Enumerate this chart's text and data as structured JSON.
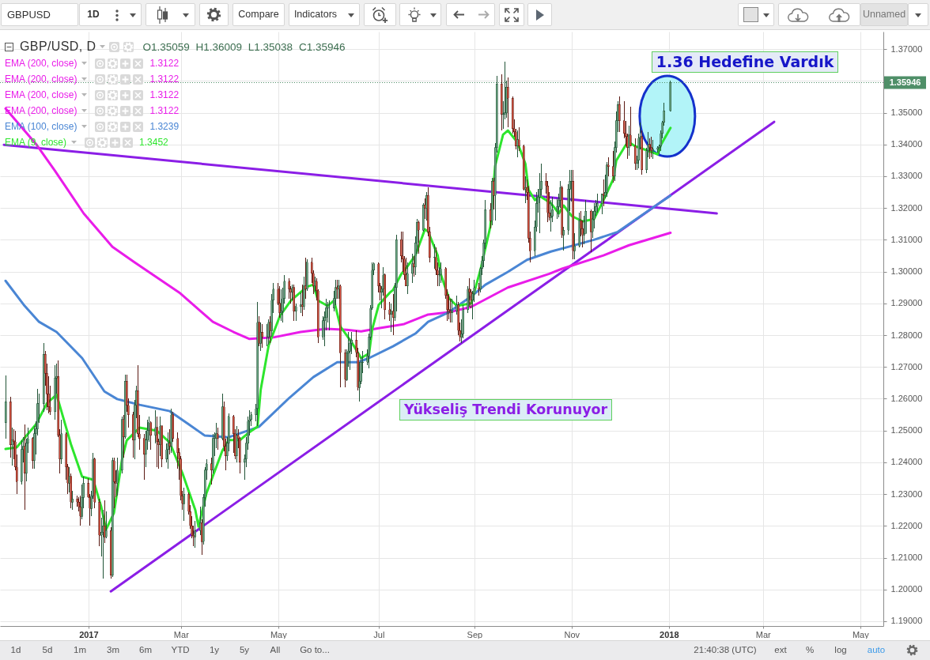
{
  "chart_data": {
    "type": "candlestick",
    "title": "GBP/USD, D",
    "subtitle": "O1.35059 H1.36009 L1.35038 C1.35946",
    "x": [
      "2016-11-11",
      "2016-11-14",
      "2016-11-15",
      "2016-11-16",
      "2016-11-17",
      "2016-11-18",
      "2016-11-21",
      "2016-11-22",
      "2016-11-23",
      "2016-11-24",
      "2016-11-25",
      "2016-11-28",
      "2016-11-29",
      "2016-11-30",
      "2016-12-01",
      "2016-12-02",
      "2016-12-05",
      "2016-12-06",
      "2016-12-07",
      "2016-12-08",
      "2016-12-09",
      "2016-12-12",
      "2016-12-13",
      "2016-12-14",
      "2016-12-15",
      "2016-12-16",
      "2016-12-19",
      "2016-12-20",
      "2016-12-21",
      "2016-12-22",
      "2016-12-23",
      "2016-12-26",
      "2016-12-27",
      "2016-12-28",
      "2016-12-29",
      "2016-12-30",
      "2017-01-02",
      "2017-01-03",
      "2017-01-04",
      "2017-01-05",
      "2017-01-06",
      "2017-01-09",
      "2017-01-10",
      "2017-01-11",
      "2017-01-12",
      "2017-01-13",
      "2017-01-16",
      "2017-01-17",
      "2017-01-18",
      "2017-01-19",
      "2017-01-20",
      "2017-01-23",
      "2017-01-24",
      "2017-01-25",
      "2017-01-26",
      "2017-01-27",
      "2017-01-30",
      "2017-01-31",
      "2017-02-01",
      "2017-02-02",
      "2017-02-03",
      "2017-02-06",
      "2017-02-07",
      "2017-02-08",
      "2017-02-09",
      "2017-02-10",
      "2017-02-13",
      "2017-02-14",
      "2017-02-15",
      "2017-02-16",
      "2017-02-17",
      "2017-02-20",
      "2017-02-21",
      "2017-02-22",
      "2017-02-23",
      "2017-02-24",
      "2017-02-27",
      "2017-02-28",
      "2017-03-01",
      "2017-03-02",
      "2017-03-03",
      "2017-03-06",
      "2017-03-07",
      "2017-03-08",
      "2017-03-09",
      "2017-03-10",
      "2017-03-13",
      "2017-03-14",
      "2017-03-15",
      "2017-03-16",
      "2017-03-17",
      "2017-03-20",
      "2017-03-21",
      "2017-03-22",
      "2017-03-23",
      "2017-03-24",
      "2017-03-27",
      "2017-03-28",
      "2017-03-29",
      "2017-03-30",
      "2017-03-31",
      "2017-04-03",
      "2017-04-04",
      "2017-04-05",
      "2017-04-06",
      "2017-04-07",
      "2017-04-10",
      "2017-04-11",
      "2017-04-12",
      "2017-04-13",
      "2017-04-14",
      "2017-04-17",
      "2017-04-18",
      "2017-04-19",
      "2017-04-20",
      "2017-04-21",
      "2017-04-24",
      "2017-04-25",
      "2017-04-26",
      "2017-04-27",
      "2017-04-28",
      "2017-05-01",
      "2017-05-02",
      "2017-05-03",
      "2017-05-04",
      "2017-05-05",
      "2017-05-08",
      "2017-05-09",
      "2017-05-10",
      "2017-05-11",
      "2017-05-12",
      "2017-05-15",
      "2017-05-16",
      "2017-05-17",
      "2017-05-18",
      "2017-05-19",
      "2017-05-22",
      "2017-05-23",
      "2017-05-24",
      "2017-05-25",
      "2017-05-26",
      "2017-05-29",
      "2017-05-30",
      "2017-05-31",
      "2017-06-01",
      "2017-06-02",
      "2017-06-05",
      "2017-06-06",
      "2017-06-07",
      "2017-06-08",
      "2017-06-09",
      "2017-06-12",
      "2017-06-13",
      "2017-06-14",
      "2017-06-15",
      "2017-06-16",
      "2017-06-19",
      "2017-06-20",
      "2017-06-21",
      "2017-06-22",
      "2017-06-23",
      "2017-06-26",
      "2017-06-27",
      "2017-06-28",
      "2017-06-29",
      "2017-06-30",
      "2017-07-03",
      "2017-07-04",
      "2017-07-05",
      "2017-07-06",
      "2017-07-07",
      "2017-07-10",
      "2017-07-11",
      "2017-07-12",
      "2017-07-13",
      "2017-07-14",
      "2017-07-17",
      "2017-07-18",
      "2017-07-19",
      "2017-07-20",
      "2017-07-21",
      "2017-07-24",
      "2017-07-25",
      "2017-07-26",
      "2017-07-27",
      "2017-07-28",
      "2017-07-31",
      "2017-08-01",
      "2017-08-02",
      "2017-08-03",
      "2017-08-04",
      "2017-08-07",
      "2017-08-08",
      "2017-08-09",
      "2017-08-10",
      "2017-08-11",
      "2017-08-14",
      "2017-08-15",
      "2017-08-16",
      "2017-08-17",
      "2017-08-18",
      "2017-08-21",
      "2017-08-22",
      "2017-08-23",
      "2017-08-24",
      "2017-08-25",
      "2017-08-28",
      "2017-08-29",
      "2017-08-30",
      "2017-08-31",
      "2017-09-01",
      "2017-09-04",
      "2017-09-05",
      "2017-09-06",
      "2017-09-07",
      "2017-09-08",
      "2017-09-11",
      "2017-09-12",
      "2017-09-13",
      "2017-09-14",
      "2017-09-15",
      "2017-09-18",
      "2017-09-19",
      "2017-09-20",
      "2017-09-21",
      "2017-09-22",
      "2017-09-25",
      "2017-09-26",
      "2017-09-27",
      "2017-09-28",
      "2017-09-29",
      "2017-10-02",
      "2017-10-03",
      "2017-10-04",
      "2017-10-05",
      "2017-10-06",
      "2017-10-09",
      "2017-10-10",
      "2017-10-11",
      "2017-10-12",
      "2017-10-13",
      "2017-10-16",
      "2017-10-17",
      "2017-10-18",
      "2017-10-19",
      "2017-10-20",
      "2017-10-23",
      "2017-10-24",
      "2017-10-25",
      "2017-10-26",
      "2017-10-27",
      "2017-10-30",
      "2017-10-31",
      "2017-11-01",
      "2017-11-02",
      "2017-11-03",
      "2017-11-06",
      "2017-11-07",
      "2017-11-08",
      "2017-11-09",
      "2017-11-10",
      "2017-11-13",
      "2017-11-14",
      "2017-11-15",
      "2017-11-16",
      "2017-11-17",
      "2017-11-20",
      "2017-11-21",
      "2017-11-22",
      "2017-11-23",
      "2017-11-24",
      "2017-11-27",
      "2017-11-28",
      "2017-11-29",
      "2017-11-30",
      "2017-12-01",
      "2017-12-04",
      "2017-12-05",
      "2017-12-06",
      "2017-12-07",
      "2017-12-08",
      "2017-12-11",
      "2017-12-12",
      "2017-12-13",
      "2017-12-14",
      "2017-12-15",
      "2017-12-18",
      "2017-12-19",
      "2017-12-20",
      "2017-12-21",
      "2017-12-22",
      "2017-12-25",
      "2017-12-26",
      "2017-12-27",
      "2017-12-28",
      "2017-12-29",
      "2018-01-02"
    ],
    "ohlc": [
      [
        1.2525,
        1.2673,
        1.2475,
        1.259
      ],
      [
        1.259,
        1.2605,
        1.2415,
        1.2455
      ],
      [
        1.2455,
        1.251,
        1.239,
        1.247
      ],
      [
        1.247,
        1.2505,
        1.241,
        1.2465
      ],
      [
        1.2465,
        1.25,
        1.2375,
        1.2385
      ],
      [
        1.2385,
        1.2425,
        1.23,
        1.234
      ],
      [
        1.234,
        1.247,
        1.233,
        1.244
      ],
      [
        1.244,
        1.248,
        1.24,
        1.245
      ],
      [
        1.245,
        1.252,
        1.225,
        1.2365
      ],
      [
        1.2365,
        1.2475,
        1.234,
        1.246
      ],
      [
        1.246,
        1.251,
        1.243,
        1.2475
      ],
      [
        1.2475,
        1.248,
        1.238,
        1.2405
      ],
      [
        1.2405,
        1.2515,
        1.238,
        1.249
      ],
      [
        1.249,
        1.253,
        1.2425,
        1.2505
      ],
      [
        1.2505,
        1.263,
        1.2485,
        1.2585
      ],
      [
        1.2585,
        1.2615,
        1.2525,
        1.2585
      ],
      [
        1.2585,
        1.2775,
        1.256,
        1.274
      ],
      [
        1.274,
        1.275,
        1.264,
        1.268
      ],
      [
        1.268,
        1.271,
        1.2565,
        1.2615
      ],
      [
        1.2615,
        1.267,
        1.2555,
        1.2575
      ],
      [
        1.2575,
        1.264,
        1.255,
        1.256
      ],
      [
        1.256,
        1.2705,
        1.2535,
        1.2665
      ],
      [
        1.2665,
        1.271,
        1.2615,
        1.267
      ],
      [
        1.267,
        1.272,
        1.248,
        1.2485
      ],
      [
        1.2485,
        1.2505,
        1.2365,
        1.241
      ],
      [
        1.241,
        1.2535,
        1.2395,
        1.249
      ],
      [
        1.249,
        1.2495,
        1.2345,
        1.2385
      ],
      [
        1.2385,
        1.2395,
        1.23,
        1.2335
      ],
      [
        1.2335,
        1.2385,
        1.2305,
        1.2355
      ],
      [
        1.2355,
        1.2365,
        1.2255,
        1.2275
      ],
      [
        1.2275,
        1.231,
        1.225,
        1.2285
      ],
      [
        1.2285,
        1.2295,
        1.226,
        1.2275
      ],
      [
        1.2275,
        1.229,
        1.2245,
        1.226
      ],
      [
        1.226,
        1.2295,
        1.22,
        1.223
      ],
      [
        1.223,
        1.233,
        1.222,
        1.229
      ],
      [
        1.229,
        1.2355,
        1.2255,
        1.2335
      ],
      [
        1.2335,
        1.235,
        1.229,
        1.229
      ],
      [
        1.229,
        1.23,
        1.22,
        1.2255
      ],
      [
        1.2255,
        1.231,
        1.223,
        1.2295
      ],
      [
        1.2295,
        1.243,
        1.2285,
        1.241
      ],
      [
        1.241,
        1.2415,
        1.2255,
        1.2275
      ],
      [
        1.2275,
        1.2285,
        1.2135,
        1.217
      ],
      [
        1.217,
        1.2225,
        1.2105,
        1.218
      ],
      [
        1.218,
        1.225,
        1.2035,
        1.22
      ],
      [
        1.22,
        1.228,
        1.2145,
        1.2165
      ],
      [
        1.2165,
        1.2245,
        1.216,
        1.2185
      ],
      [
        1.2185,
        1.2195,
        1.2035,
        1.2045
      ],
      [
        1.2045,
        1.2415,
        1.204,
        1.2405
      ],
      [
        1.2405,
        1.2415,
        1.2255,
        1.234
      ],
      [
        1.234,
        1.2375,
        1.229,
        1.2335
      ],
      [
        1.2335,
        1.2415,
        1.2295,
        1.2375
      ],
      [
        1.2375,
        1.2545,
        1.2365,
        1.2535
      ],
      [
        1.2535,
        1.255,
        1.2415,
        1.248
      ],
      [
        1.248,
        1.2675,
        1.2475,
        1.2655
      ],
      [
        1.2655,
        1.2675,
        1.256,
        1.258
      ],
      [
        1.258,
        1.26,
        1.251,
        1.255
      ],
      [
        1.255,
        1.256,
        1.2415,
        1.247
      ],
      [
        1.247,
        1.2595,
        1.241,
        1.258
      ],
      [
        1.258,
        1.264,
        1.254,
        1.2625
      ],
      [
        1.2625,
        1.2705,
        1.248,
        1.249
      ],
      [
        1.249,
        1.255,
        1.244,
        1.2475
      ],
      [
        1.2475,
        1.249,
        1.2345,
        1.2425
      ],
      [
        1.2425,
        1.25,
        1.2385,
        1.247
      ],
      [
        1.247,
        1.2535,
        1.244,
        1.25
      ],
      [
        1.25,
        1.2545,
        1.2465,
        1.2525
      ],
      [
        1.2525,
        1.253,
        1.244,
        1.2485
      ],
      [
        1.2485,
        1.2565,
        1.246,
        1.251
      ],
      [
        1.251,
        1.2545,
        1.2385,
        1.2465
      ],
      [
        1.2465,
        1.2475,
        1.238,
        1.2455
      ],
      [
        1.2455,
        1.2545,
        1.242,
        1.2515
      ],
      [
        1.2515,
        1.2515,
        1.2385,
        1.241
      ],
      [
        1.241,
        1.246,
        1.24,
        1.244
      ],
      [
        1.244,
        1.2495,
        1.238,
        1.246
      ],
      [
        1.246,
        1.2505,
        1.2425,
        1.245
      ],
      [
        1.245,
        1.257,
        1.243,
        1.255
      ],
      [
        1.255,
        1.256,
        1.2465,
        1.2475
      ],
      [
        1.2475,
        1.2495,
        1.238,
        1.243
      ],
      [
        1.243,
        1.2445,
        1.2345,
        1.241
      ],
      [
        1.241,
        1.242,
        1.228,
        1.2295
      ],
      [
        1.2295,
        1.231,
        1.225,
        1.227
      ],
      [
        1.227,
        1.232,
        1.2215,
        1.23
      ],
      [
        1.23,
        1.2305,
        1.2235,
        1.2245
      ],
      [
        1.2245,
        1.2265,
        1.219,
        1.22
      ],
      [
        1.22,
        1.223,
        1.216,
        1.217
      ],
      [
        1.217,
        1.22,
        1.2135,
        1.2165
      ],
      [
        1.2165,
        1.2215,
        1.213,
        1.2185
      ],
      [
        1.2185,
        1.226,
        1.217,
        1.221
      ],
      [
        1.221,
        1.222,
        1.211,
        1.215
      ],
      [
        1.215,
        1.23,
        1.214,
        1.229
      ],
      [
        1.229,
        1.2385,
        1.226,
        1.2375
      ],
      [
        1.2375,
        1.241,
        1.2345,
        1.2395
      ],
      [
        1.2395,
        1.2415,
        1.233,
        1.2375
      ],
      [
        1.2375,
        1.249,
        1.2365,
        1.2475
      ],
      [
        1.2475,
        1.2495,
        1.242,
        1.2475
      ],
      [
        1.2475,
        1.2525,
        1.2445,
        1.249
      ],
      [
        1.249,
        1.251,
        1.244,
        1.2475
      ],
      [
        1.2475,
        1.2615,
        1.247,
        1.2575
      ],
      [
        1.2575,
        1.259,
        1.2435,
        1.245
      ],
      [
        1.245,
        1.2475,
        1.2375,
        1.242
      ],
      [
        1.242,
        1.248,
        1.2405,
        1.246
      ],
      [
        1.246,
        1.2555,
        1.2435,
        1.2545
      ],
      [
        1.2545,
        1.255,
        1.243,
        1.249
      ],
      [
        1.249,
        1.2505,
        1.241,
        1.242
      ],
      [
        1.242,
        1.2515,
        1.24,
        1.2485
      ],
      [
        1.2485,
        1.2505,
        1.2445,
        1.2475
      ],
      [
        1.2475,
        1.248,
        1.2365,
        1.24
      ],
      [
        1.24,
        1.2425,
        1.2345,
        1.241
      ],
      [
        1.241,
        1.248,
        1.2385,
        1.246
      ],
      [
        1.246,
        1.2545,
        1.244,
        1.253
      ],
      [
        1.253,
        1.2565,
        1.2485,
        1.2535
      ],
      [
        1.2535,
        1.256,
        1.2515,
        1.255
      ],
      [
        1.255,
        1.2585,
        1.253,
        1.257
      ],
      [
        1.257,
        1.2905,
        1.2515,
        1.284
      ],
      [
        1.284,
        1.286,
        1.2765,
        1.2775
      ],
      [
        1.2775,
        1.284,
        1.275,
        1.281
      ],
      [
        1.281,
        1.2835,
        1.276,
        1.2795
      ],
      [
        1.2795,
        1.2835,
        1.2765,
        1.2795
      ],
      [
        1.2795,
        1.285,
        1.277,
        1.284
      ],
      [
        1.284,
        1.286,
        1.2775,
        1.2815
      ],
      [
        1.2815,
        1.293,
        1.2795,
        1.291
      ],
      [
        1.291,
        1.2965,
        1.287,
        1.2945
      ],
      [
        1.2945,
        1.2965,
        1.2895,
        1.29
      ],
      [
        1.29,
        1.2955,
        1.2855,
        1.287
      ],
      [
        1.287,
        1.2945,
        1.2845,
        1.2875
      ],
      [
        1.2875,
        1.295,
        1.284,
        1.2915
      ],
      [
        1.2915,
        1.299,
        1.29,
        1.297
      ],
      [
        1.297,
        1.298,
        1.2915,
        1.2945
      ],
      [
        1.2945,
        1.2955,
        1.29,
        1.2935
      ],
      [
        1.2935,
        1.296,
        1.291,
        1.295
      ],
      [
        1.295,
        1.296,
        1.2845,
        1.2875
      ],
      [
        1.2875,
        1.29,
        1.2845,
        1.289
      ],
      [
        1.289,
        1.2935,
        1.287,
        1.2895
      ],
      [
        1.2895,
        1.296,
        1.286,
        1.289
      ],
      [
        1.289,
        1.2985,
        1.288,
        1.2955
      ],
      [
        1.2955,
        1.3045,
        1.2915,
        1.2945
      ],
      [
        1.2945,
        1.304,
        1.294,
        1.303
      ],
      [
        1.303,
        1.3045,
        1.2965,
        1.2995
      ],
      [
        1.2995,
        1.3005,
        1.293,
        1.2955
      ],
      [
        1.2955,
        1.2985,
        1.2935,
        1.297
      ],
      [
        1.297,
        1.298,
        1.291,
        1.294
      ],
      [
        1.294,
        1.2945,
        1.2775,
        1.2795
      ],
      [
        1.2795,
        1.286,
        1.2785,
        1.2845
      ],
      [
        1.2845,
        1.2875,
        1.2765,
        1.2855
      ],
      [
        1.2855,
        1.2915,
        1.2815,
        1.2885
      ],
      [
        1.2885,
        1.2905,
        1.284,
        1.2885
      ],
      [
        1.2885,
        1.291,
        1.2815,
        1.2885
      ],
      [
        1.2885,
        1.294,
        1.2875,
        1.2915
      ],
      [
        1.2915,
        1.2975,
        1.2895,
        1.295
      ],
      [
        1.295,
        1.2975,
        1.2915,
        1.2945
      ],
      [
        1.2945,
        1.2975,
        1.2915,
        1.2955
      ],
      [
        1.2955,
        1.296,
        1.2635,
        1.2745
      ],
      [
        1.2745,
        1.2755,
        1.2635,
        1.266
      ],
      [
        1.266,
        1.2755,
        1.2655,
        1.2745
      ],
      [
        1.2745,
        1.281,
        1.27,
        1.275
      ],
      [
        1.275,
        1.279,
        1.269,
        1.2775
      ],
      [
        1.2775,
        1.281,
        1.274,
        1.2785
      ],
      [
        1.2785,
        1.2815,
        1.273,
        1.2745
      ],
      [
        1.2745,
        1.276,
        1.2625,
        1.2635
      ],
      [
        1.2635,
        1.2715,
        1.259,
        1.2655
      ],
      [
        1.2655,
        1.273,
        1.2645,
        1.2715
      ],
      [
        1.2715,
        1.275,
        1.268,
        1.2715
      ],
      [
        1.2715,
        1.2755,
        1.2705,
        1.2735
      ],
      [
        1.2735,
        1.2805,
        1.2695,
        1.2795
      ],
      [
        1.2795,
        1.2895,
        1.2785,
        1.2885
      ],
      [
        1.2885,
        1.303,
        1.288,
        1.3005
      ],
      [
        1.3005,
        1.303,
        1.299,
        1.3025
      ],
      [
        1.3025,
        1.303,
        1.2935,
        1.2955
      ],
      [
        1.2955,
        1.2965,
        1.291,
        1.2935
      ],
      [
        1.2935,
        1.2955,
        1.2885,
        1.2945
      ],
      [
        1.2945,
        1.3015,
        1.2925,
        1.299
      ],
      [
        1.299,
        1.2995,
        1.285,
        1.288
      ],
      [
        1.288,
        1.2905,
        1.2845,
        1.2865
      ],
      [
        1.2865,
        1.29,
        1.281,
        1.2875
      ],
      [
        1.2875,
        1.293,
        1.28,
        1.2855
      ],
      [
        1.2855,
        1.2965,
        1.2845,
        1.295
      ],
      [
        1.295,
        1.3115,
        1.2875,
        1.31
      ],
      [
        1.31,
        1.3125,
        1.303,
        1.305
      ],
      [
        1.305,
        1.3125,
        1.3,
        1.304
      ],
      [
        1.304,
        1.305,
        1.2975,
        1.299
      ],
      [
        1.299,
        1.3045,
        1.2955,
        1.2955
      ],
      [
        1.2955,
        1.303,
        1.293,
        1.2995
      ],
      [
        1.2995,
        1.3055,
        1.2965,
        1.3025
      ],
      [
        1.3025,
        1.305,
        1.2985,
        1.3015
      ],
      [
        1.3015,
        1.311,
        1.299,
        1.309
      ],
      [
        1.309,
        1.3165,
        1.3055,
        1.3155
      ],
      [
        1.3155,
        1.316,
        1.3055,
        1.313
      ],
      [
        1.313,
        1.3215,
        1.3125,
        1.321
      ],
      [
        1.321,
        1.323,
        1.3165,
        1.32
      ],
      [
        1.32,
        1.325,
        1.316,
        1.324
      ],
      [
        1.324,
        1.3265,
        1.311,
        1.3125
      ],
      [
        1.3125,
        1.314,
        1.303,
        1.3045
      ],
      [
        1.3045,
        1.3085,
        1.301,
        1.3045
      ],
      [
        1.3045,
        1.3075,
        1.299,
        1.3005
      ],
      [
        1.3005,
        1.303,
        1.2955,
        1.299
      ],
      [
        1.299,
        1.3015,
        1.2955,
        1.299
      ],
      [
        1.299,
        1.303,
        1.2965,
        1.301
      ],
      [
        1.301,
        1.3015,
        1.2915,
        1.2925
      ],
      [
        1.2925,
        1.2945,
        1.2845,
        1.288
      ],
      [
        1.288,
        1.293,
        1.285,
        1.2875
      ],
      [
        1.2875,
        1.2915,
        1.284,
        1.287
      ],
      [
        1.287,
        1.2915,
        1.284,
        1.2875
      ],
      [
        1.2875,
        1.2925,
        1.2865,
        1.2895
      ],
      [
        1.2895,
        1.2905,
        1.28,
        1.2815
      ],
      [
        1.2815,
        1.284,
        1.278,
        1.2795
      ],
      [
        1.2795,
        1.285,
        1.2775,
        1.2805
      ],
      [
        1.2805,
        1.2895,
        1.279,
        1.288
      ],
      [
        1.288,
        1.2955,
        1.287,
        1.2945
      ],
      [
        1.2945,
        1.298,
        1.289,
        1.2935
      ],
      [
        1.2935,
        1.2945,
        1.2885,
        1.291
      ],
      [
        1.291,
        1.294,
        1.285,
        1.293
      ],
      [
        1.293,
        1.2975,
        1.2905,
        1.295
      ],
      [
        1.295,
        1.2965,
        1.2925,
        1.2945
      ],
      [
        1.2945,
        1.3015,
        1.2935,
        1.301
      ],
      [
        1.301,
        1.305,
        1.299,
        1.3035
      ],
      [
        1.3035,
        1.31,
        1.3015,
        1.309
      ],
      [
        1.309,
        1.3225,
        1.307,
        1.3195
      ],
      [
        1.3195,
        1.3215,
        1.3135,
        1.316
      ],
      [
        1.316,
        1.3295,
        1.3145,
        1.3285
      ],
      [
        1.3285,
        1.3295,
        1.3195,
        1.324
      ],
      [
        1.324,
        1.3405,
        1.316,
        1.339
      ],
      [
        1.339,
        1.3615,
        1.3375,
        1.359
      ],
      [
        1.359,
        1.362,
        1.3445,
        1.3495
      ],
      [
        1.3495,
        1.3535,
        1.345,
        1.3495
      ],
      [
        1.3495,
        1.366,
        1.348,
        1.35
      ],
      [
        1.35,
        1.36,
        1.3485,
        1.358
      ],
      [
        1.358,
        1.361,
        1.3455,
        1.3545
      ],
      [
        1.3545,
        1.355,
        1.3435,
        1.345
      ],
      [
        1.345,
        1.348,
        1.3425,
        1.344
      ],
      [
        1.344,
        1.345,
        1.3385,
        1.3395
      ],
      [
        1.3395,
        1.3445,
        1.336,
        1.3415
      ],
      [
        1.3415,
        1.3455,
        1.338,
        1.3395
      ],
      [
        1.3395,
        1.34,
        1.3255,
        1.326
      ],
      [
        1.326,
        1.33,
        1.3215,
        1.3265
      ],
      [
        1.3265,
        1.329,
        1.3225,
        1.325
      ],
      [
        1.325,
        1.327,
        1.309,
        1.3105
      ],
      [
        1.3105,
        1.3125,
        1.303,
        1.3065
      ],
      [
        1.3065,
        1.316,
        1.305,
        1.314
      ],
      [
        1.314,
        1.325,
        1.3125,
        1.3215
      ],
      [
        1.3215,
        1.326,
        1.3185,
        1.3235
      ],
      [
        1.3235,
        1.331,
        1.312,
        1.326
      ],
      [
        1.326,
        1.334,
        1.324,
        1.3285
      ],
      [
        1.3285,
        1.331,
        1.3245,
        1.327
      ],
      [
        1.327,
        1.3285,
        1.3155,
        1.3185
      ],
      [
        1.3185,
        1.325,
        1.316,
        1.317
      ],
      [
        1.317,
        1.3225,
        1.3125,
        1.3175
      ],
      [
        1.3175,
        1.3235,
        1.3155,
        1.3195
      ],
      [
        1.3195,
        1.323,
        1.3165,
        1.3205
      ],
      [
        1.3205,
        1.3245,
        1.317,
        1.3225
      ],
      [
        1.3225,
        1.3285,
        1.32,
        1.3265
      ],
      [
        1.3265,
        1.327,
        1.3105,
        1.3115
      ],
      [
        1.3115,
        1.314,
        1.3065,
        1.313
      ],
      [
        1.313,
        1.3275,
        1.3115,
        1.326
      ],
      [
        1.326,
        1.332,
        1.319,
        1.3285
      ],
      [
        1.3285,
        1.332,
        1.322,
        1.3285
      ],
      [
        1.3285,
        1.332,
        1.304,
        1.3065
      ],
      [
        1.3065,
        1.312,
        1.304,
        1.308
      ],
      [
        1.308,
        1.3185,
        1.3075,
        1.316
      ],
      [
        1.316,
        1.319,
        1.311,
        1.3135
      ],
      [
        1.3135,
        1.316,
        1.3075,
        1.3115
      ],
      [
        1.3115,
        1.3175,
        1.3085,
        1.312
      ],
      [
        1.312,
        1.3225,
        1.312,
        1.319
      ],
      [
        1.319,
        1.3195,
        1.306,
        1.3125
      ],
      [
        1.3125,
        1.319,
        1.3105,
        1.3165
      ],
      [
        1.3165,
        1.3215,
        1.3135,
        1.319
      ],
      [
        1.319,
        1.3225,
        1.3175,
        1.3205
      ],
      [
        1.3205,
        1.3245,
        1.3185,
        1.3215
      ],
      [
        1.3215,
        1.3245,
        1.318,
        1.3245
      ],
      [
        1.3245,
        1.329,
        1.3205,
        1.324
      ],
      [
        1.324,
        1.3305,
        1.323,
        1.325
      ],
      [
        1.325,
        1.3345,
        1.3235,
        1.3335
      ],
      [
        1.3335,
        1.336,
        1.33,
        1.333
      ],
      [
        1.333,
        1.338,
        1.328,
        1.33
      ],
      [
        1.33,
        1.341,
        1.3285,
        1.339
      ],
      [
        1.339,
        1.3505,
        1.3375,
        1.3475
      ],
      [
        1.3475,
        1.3535,
        1.344,
        1.3525
      ],
      [
        1.3525,
        1.355,
        1.344,
        1.3475
      ],
      [
        1.3475,
        1.3535,
        1.342,
        1.3435
      ],
      [
        1.3435,
        1.3475,
        1.3395,
        1.3425
      ],
      [
        1.3425,
        1.3435,
        1.3355,
        1.339
      ],
      [
        1.339,
        1.346,
        1.3365,
        1.343
      ],
      [
        1.343,
        1.352,
        1.3395,
        1.3395
      ],
      [
        1.3395,
        1.342,
        1.332,
        1.334
      ],
      [
        1.334,
        1.3365,
        1.332,
        1.335
      ],
      [
        1.335,
        1.3435,
        1.3325,
        1.342
      ],
      [
        1.342,
        1.347,
        1.3385,
        1.3425
      ],
      [
        1.3425,
        1.3445,
        1.3305,
        1.332
      ],
      [
        1.332,
        1.339,
        1.331,
        1.338
      ],
      [
        1.338,
        1.344,
        1.336,
        1.34
      ],
      [
        1.34,
        1.342,
        1.3355,
        1.339
      ],
      [
        1.339,
        1.3425,
        1.336,
        1.338
      ],
      [
        1.338,
        1.3415,
        1.3355,
        1.3385
      ],
      [
        1.3385,
        1.3395,
        1.3375,
        1.339
      ],
      [
        1.339,
        1.34,
        1.337,
        1.3395
      ],
      [
        1.3395,
        1.3445,
        1.338,
        1.3435
      ],
      [
        1.3435,
        1.3475,
        1.342,
        1.347
      ],
      [
        1.347,
        1.353,
        1.346,
        1.3506
      ],
      [
        1.35059,
        1.36009,
        1.35038,
        1.35946
      ]
    ],
    "series": [
      {
        "name": "EMA (200, close)",
        "type": "line",
        "color": "#e91ce9",
        "x": [
          "2016-11-11",
          "2016-11-30",
          "2016-12-12",
          "2016-12-30",
          "2017-01-17",
          "2017-01-31",
          "2017-02-28",
          "2017-03-21",
          "2017-04-03",
          "2017-04-13",
          "2017-04-28",
          "2017-05-15",
          "2017-05-31",
          "2017-06-13",
          "2017-06-22",
          "2017-07-03",
          "2017-07-19",
          "2017-08-03",
          "2017-08-16",
          "2017-08-30",
          "2017-09-22",
          "2017-10-18",
          "2017-10-26",
          "2017-11-21",
          "2017-12-07",
          "2018-01-02"
        ],
        "values": [
          1.3513,
          1.3402,
          1.3317,
          1.3183,
          1.3078,
          1.3029,
          1.2934,
          1.2842,
          1.281,
          1.2788,
          1.2793,
          1.281,
          1.282,
          1.2817,
          1.2812,
          1.2822,
          1.2835,
          1.2865,
          1.2872,
          1.2889,
          1.295,
          1.2993,
          1.3009,
          1.3051,
          1.3083,
          1.3122
        ]
      },
      {
        "name": "EMA (100, close)",
        "type": "line",
        "color": "#4a86d4",
        "x": [
          "2016-11-11",
          "2016-11-23",
          "2016-12-02",
          "2016-12-13",
          "2016-12-29",
          "2017-01-12",
          "2017-01-20",
          "2017-02-03",
          "2017-02-22",
          "2017-03-06",
          "2017-03-16",
          "2017-03-31",
          "2017-04-19",
          "2017-05-08",
          "2017-05-23",
          "2017-06-07",
          "2017-06-20",
          "2017-06-27",
          "2017-07-12",
          "2017-07-26",
          "2017-08-03",
          "2017-08-16",
          "2017-08-30",
          "2017-09-08",
          "2017-09-22",
          "2017-10-04",
          "2017-10-19",
          "2017-11-02",
          "2017-11-15",
          "2017-11-30",
          "2017-12-12",
          "2017-12-25",
          "2018-01-02"
        ],
        "values": [
          1.2971,
          1.2892,
          1.2842,
          1.281,
          1.2728,
          1.2623,
          1.2599,
          1.2581,
          1.2561,
          1.2519,
          1.2484,
          1.2479,
          1.2512,
          1.2603,
          1.2668,
          1.2715,
          1.2715,
          1.2728,
          1.2765,
          1.2805,
          1.2842,
          1.2872,
          1.2922,
          1.2959,
          1.2999,
          1.3037,
          1.3063,
          1.3082,
          1.31,
          1.3125,
          1.3167,
          1.3212,
          1.3239
        ]
      },
      {
        "name": "EMA (9, close)",
        "type": "line",
        "color": "#2de52d",
        "x": [
          "2016-11-11",
          "2016-11-18",
          "2016-11-30",
          "2016-12-07",
          "2016-12-13",
          "2016-12-16",
          "2016-12-22",
          "2016-12-29",
          "2017-01-05",
          "2017-01-10",
          "2017-01-13",
          "2017-01-18",
          "2017-01-23",
          "2017-01-26",
          "2017-02-03",
          "2017-02-14",
          "2017-02-22",
          "2017-03-02",
          "2017-03-10",
          "2017-03-12",
          "2017-03-17",
          "2017-03-27",
          "2017-03-31",
          "2017-04-07",
          "2017-04-13",
          "2017-04-18",
          "2017-04-20",
          "2017-04-25",
          "2017-05-02",
          "2017-05-09",
          "2017-05-19",
          "2017-05-23",
          "2017-05-26",
          "2017-06-01",
          "2017-06-05",
          "2017-06-09",
          "2017-06-16",
          "2017-06-22",
          "2017-06-27",
          "2017-06-29",
          "2017-07-03",
          "2017-07-10",
          "2017-07-12",
          "2017-07-17",
          "2017-07-21",
          "2017-07-26",
          "2017-08-01",
          "2017-08-03",
          "2017-08-09",
          "2017-08-11",
          "2017-08-16",
          "2017-08-21",
          "2017-08-30",
          "2017-09-05",
          "2017-09-11",
          "2017-09-14",
          "2017-09-19",
          "2017-09-22",
          "2017-09-28",
          "2017-10-03",
          "2017-10-05",
          "2017-10-09",
          "2017-10-12",
          "2017-10-19",
          "2017-10-24",
          "2017-10-27",
          "2017-11-01",
          "2017-11-08",
          "2017-11-15",
          "2017-11-21",
          "2017-11-27",
          "2017-11-29",
          "2017-12-05",
          "2017-12-07",
          "2017-12-11",
          "2017-12-18",
          "2017-12-25",
          "2017-12-27",
          "2018-01-02"
        ],
        "values": [
          1.2442,
          1.2447,
          1.2519,
          1.2586,
          1.2613,
          1.2561,
          1.2457,
          1.2355,
          1.2345,
          1.226,
          1.2188,
          1.2241,
          1.2408,
          1.2469,
          1.2509,
          1.2499,
          1.2462,
          1.2365,
          1.225,
          1.2198,
          1.2303,
          1.2437,
          1.247,
          1.247,
          1.2495,
          1.2512,
          1.2628,
          1.2768,
          1.286,
          1.2909,
          1.2952,
          1.2959,
          1.2909,
          1.2892,
          1.2909,
          1.2827,
          1.2778,
          1.2728,
          1.2743,
          1.282,
          1.2895,
          1.2934,
          1.2942,
          1.2991,
          1.3016,
          1.3051,
          1.3133,
          1.3126,
          1.3051,
          1.2991,
          1.2917,
          1.2892,
          1.29,
          1.3009,
          1.3141,
          1.3332,
          1.3431,
          1.3444,
          1.3407,
          1.3339,
          1.3257,
          1.3225,
          1.3238,
          1.3215,
          1.3183,
          1.3208,
          1.3175,
          1.3158,
          1.3165,
          1.3225,
          1.329,
          1.3349,
          1.3399,
          1.3407,
          1.3394,
          1.3382,
          1.3369,
          1.3399,
          1.3452
        ]
      },
      {
        "type": "line",
        "color": "#8b1ee6",
        "x": [
          "2016-11-10",
          "2018-01-31"
        ],
        "values": [
          1.3399,
          1.3183
        ]
      },
      {
        "type": "line",
        "color": "#8b1ee6",
        "x": [
          "2017-01-16",
          "2018-03-08"
        ],
        "values": [
          1.1994,
          1.3471
        ]
      }
    ],
    "xlim": [
      "2016-11-10",
      "2018-05-13"
    ],
    "xticks": [
      {
        "value": "2017-01-02",
        "label": "2017"
      },
      {
        "value": "2017-03-01",
        "label": "Mar"
      },
      {
        "value": "2017-05-01",
        "label": "May"
      },
      {
        "value": "2017-07-03",
        "label": "Jul"
      },
      {
        "value": "2017-09-01",
        "label": "Sep"
      },
      {
        "value": "2017-11-01",
        "label": "Nov"
      },
      {
        "value": "2018-01-01",
        "label": "2018"
      },
      {
        "value": "2018-03-01",
        "label": "Mar"
      },
      {
        "value": "2018-05-01",
        "label": "May"
      }
    ],
    "ylim": [
      1.1885,
      1.3755
    ],
    "yticks": [
      {
        "value": 1.19,
        "label": "1.19000"
      },
      {
        "value": 1.2,
        "label": "1.20000"
      },
      {
        "value": 1.21,
        "label": "1.21000"
      },
      {
        "value": 1.22,
        "label": "1.22000"
      },
      {
        "value": 1.23,
        "label": "1.23000"
      },
      {
        "value": 1.24,
        "label": "1.24000"
      },
      {
        "value": 1.25,
        "label": "1.25000"
      },
      {
        "value": 1.26,
        "label": "1.26000"
      },
      {
        "value": 1.27,
        "label": "1.27000"
      },
      {
        "value": 1.28,
        "label": "1.28000"
      },
      {
        "value": 1.29,
        "label": "1.29000"
      },
      {
        "value": 1.3,
        "label": "1.30000"
      },
      {
        "value": 1.31,
        "label": "1.31000"
      },
      {
        "value": 1.32,
        "label": "1.32000"
      },
      {
        "value": 1.33,
        "label": "1.33000"
      },
      {
        "value": 1.34,
        "label": "1.34000"
      },
      {
        "value": 1.35,
        "label": "1.35000"
      },
      {
        "value": 1.36,
        "label": null
      },
      {
        "value": 1.37,
        "label": "1.37000"
      }
    ],
    "ref_lines": [
      {
        "axis": "y",
        "value": 1.35946,
        "label": "1.35946",
        "color": "#4f8f68",
        "line_style": "dotted"
      }
    ],
    "annotations": [
      {
        "text": "1.36 Hedefine Vardık",
        "x": "2018-01-02",
        "y": 1.36009
      },
      "Yükseliş Trendi Korunuyor",
      "GBPUSD",
      "1D",
      "Compare",
      "Indicators",
      "Unnamed",
      "1d",
      "5d",
      "1m",
      "3m",
      "6m",
      "YTD",
      "1y",
      "5y",
      "All",
      "Go to...",
      "21:40:38 (UTC)",
      "ext",
      "%",
      "log",
      "auto",
      "EMA (200, close)",
      "1.3122",
      "EMA (200, close)",
      "1.3122",
      "EMA (200, close)",
      "1.3122",
      "1.3122",
      "1.3239",
      "1.3452"
    ],
    "grid": true,
    "legend": "top left"
  }
}
